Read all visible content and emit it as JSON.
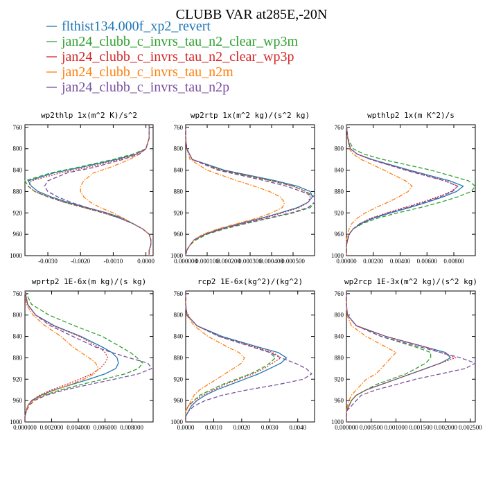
{
  "figure_title": "CLUBB VAR at285E,-20N",
  "legend": [
    {
      "label": "flthist134.000f_xp2_revert",
      "color": "#1f77b4",
      "dash": "solid"
    },
    {
      "label": "jan24_clubb_c_invrs_tau_n2_clear_wp3m",
      "color": "#2ca02c",
      "dash": "dash"
    },
    {
      "label": "jan24_clubb_c_invrs_tau_n2_clear_wp3p",
      "color": "#d62728",
      "dash": "dot"
    },
    {
      "label": "jan24_clubb_c_invrs_tau_n2m",
      "color": "#ff7f0e",
      "dash": "dashdot"
    },
    {
      "label": "jan24_clubb_c_invrs_tau_n2p",
      "color": "#7a4fa0",
      "dash": "dash"
    }
  ],
  "chart_data": [
    {
      "type": "line",
      "title": "wp2thlp  1x(m^2 K)/s^2",
      "xlim": [
        -0.0037,
        0.00022
      ],
      "ylim": [
        1000,
        755
      ],
      "xticks": [
        -0.003,
        -0.002,
        -0.001,
        0.0
      ],
      "xticklabels": [
        "-0.0030",
        "-0.0020",
        "-0.0010",
        "0.0000"
      ],
      "yticks": [
        760,
        800,
        840,
        880,
        920,
        960,
        1000
      ],
      "y": [
        755,
        780,
        800,
        810,
        820,
        835,
        845,
        860,
        870,
        880,
        890,
        900,
        910,
        920,
        930,
        940,
        950,
        960,
        970,
        980,
        990,
        1000
      ],
      "series": [
        {
          "values": [
            0.0001,
            0.0001,
            0.0,
            -0.0003,
            -0.0009,
            -0.002,
            -0.0028,
            -0.0036,
            -0.0035,
            -0.0033,
            -0.0029,
            -0.0024,
            -0.0018,
            -0.0012,
            -0.0007,
            -0.0004,
            -0.0001,
            0.0001,
            0.00015,
            0.00015,
            0.0001,
            0.0001
          ]
        },
        {
          "values": [
            0.0001,
            0.0001,
            0.0,
            -0.0004,
            -0.001,
            -0.0021,
            -0.0029,
            -0.0037,
            -0.0036,
            -0.0034,
            -0.003,
            -0.0025,
            -0.0019,
            -0.0013,
            -0.0008,
            -0.0004,
            -0.0001,
            0.0001,
            0.00015,
            0.00015,
            0.0001,
            0.0001
          ]
        },
        {
          "values": [
            0.0001,
            0.0001,
            0.0,
            -0.0003,
            -0.0008,
            -0.0018,
            -0.0026,
            -0.0035,
            -0.0036,
            -0.0034,
            -0.003,
            -0.0025,
            -0.0019,
            -0.0013,
            -0.0008,
            -0.0004,
            -0.0001,
            0.0001,
            0.00015,
            0.00015,
            0.0001,
            0.0001
          ]
        },
        {
          "values": [
            0.0001,
            0.0001,
            0.0,
            -0.0002,
            -0.0005,
            -0.0011,
            -0.0016,
            -0.0019,
            -0.002,
            -0.002,
            -0.0019,
            -0.0017,
            -0.0014,
            -0.001,
            -0.0007,
            -0.0004,
            -0.0001,
            0.0001,
            0.00015,
            0.00015,
            0.0001,
            0.0001
          ]
        },
        {
          "values": [
            0.0001,
            0.0001,
            0.0,
            -0.0002,
            -0.0007,
            -0.0016,
            -0.0024,
            -0.003,
            -0.0031,
            -0.003,
            -0.0027,
            -0.0023,
            -0.0018,
            -0.0012,
            -0.0008,
            -0.0004,
            -0.0001,
            0.0001,
            0.00015,
            0.00015,
            0.0001,
            0.0001
          ]
        }
      ]
    },
    {
      "type": "line",
      "title": "wp2rtp  1x(m^2 kg)/(s^2 kg)",
      "xlim": [
        0.0,
        0.0006
      ],
      "ylim": [
        1000,
        755
      ],
      "xticks": [
        0.0,
        0.0001,
        0.0002,
        0.0003,
        0.0004,
        0.0005
      ],
      "xticklabels": [
        "0.000000",
        "0.000100",
        "0.000200",
        "0.000300",
        "0.000400",
        "0.000500"
      ],
      "yticks": [
        760,
        800,
        840,
        880,
        920,
        960,
        1000
      ],
      "y": [
        755,
        780,
        800,
        820,
        840,
        860,
        870,
        880,
        890,
        900,
        910,
        920,
        930,
        940,
        950,
        960,
        970,
        980,
        990,
        1000
      ],
      "series": [
        {
          "values": [
            0.0,
            0.0,
            5e-06,
            3e-05,
            0.00018,
            0.00042,
            0.00052,
            0.00058,
            0.00059,
            0.00057,
            0.00052,
            0.00044,
            0.00035,
            0.00025,
            0.00016,
            9e-05,
            4e-05,
            2e-05,
            5e-06,
            0.0
          ]
        },
        {
          "values": [
            0.0,
            0.0,
            5e-06,
            3e-05,
            0.00016,
            0.0004,
            0.0005,
            0.00056,
            0.0006,
            0.00061,
            0.00058,
            0.0005,
            0.00039,
            0.00028,
            0.00018,
            0.0001,
            5e-05,
            2e-05,
            5e-06,
            0.0
          ]
        },
        {
          "values": [
            0.0,
            0.0,
            5e-06,
            3e-05,
            0.00017,
            0.0004,
            0.0005,
            0.00056,
            0.00058,
            0.00057,
            0.00053,
            0.00045,
            0.00036,
            0.00026,
            0.00017,
            9e-05,
            4e-05,
            2e-05,
            5e-06,
            0.0
          ]
        },
        {
          "values": [
            0.0,
            0.0,
            5e-06,
            2e-05,
            0.0001,
            0.00024,
            0.00032,
            0.00039,
            0.00044,
            0.00046,
            0.00045,
            0.0004,
            0.00033,
            0.00024,
            0.00015,
            8e-05,
            4e-05,
            2e-05,
            5e-06,
            0.0
          ]
        },
        {
          "values": [
            0.0,
            0.0,
            5e-06,
            3e-05,
            0.00015,
            0.00037,
            0.00047,
            0.00054,
            0.0006,
            0.00061,
            0.00057,
            0.00049,
            0.00038,
            0.00027,
            0.00017,
            9e-05,
            4e-05,
            2e-05,
            5e-06,
            0.0
          ]
        }
      ]
    },
    {
      "type": "line",
      "title": "wpthlp2  1x(m K^2)/s",
      "xlim": [
        0.0,
        0.0096
      ],
      "ylim": [
        1000,
        755
      ],
      "xticks": [
        0.0,
        0.002,
        0.004,
        0.006,
        0.008
      ],
      "xticklabels": [
        "0.00000",
        "0.00200",
        "0.00400",
        "0.00600",
        "0.00800"
      ],
      "yticks": [
        760,
        800,
        840,
        880,
        920,
        960,
        1000
      ],
      "y": [
        755,
        780,
        800,
        810,
        820,
        840,
        860,
        870,
        880,
        890,
        900,
        910,
        920,
        930,
        940,
        950,
        960,
        970,
        980,
        990,
        1000
      ],
      "series": [
        {
          "values": [
            0.0,
            0.0001,
            0.0003,
            0.0008,
            0.0019,
            0.0047,
            0.0077,
            0.0087,
            0.0082,
            0.0072,
            0.006,
            0.0047,
            0.0033,
            0.002,
            0.0011,
            0.0005,
            0.0002,
            0.0001,
            0.0,
            0.0,
            0.0
          ]
        },
        {
          "values": [
            0.0,
            0.0001,
            0.0005,
            0.0013,
            0.0027,
            0.0063,
            0.0091,
            0.0098,
            0.0093,
            0.0083,
            0.007,
            0.0055,
            0.0038,
            0.0023,
            0.0012,
            0.0005,
            0.0002,
            0.0001,
            0.0,
            0.0,
            0.0
          ]
        },
        {
          "values": [
            0.0,
            0.0001,
            0.0003,
            0.0008,
            0.0018,
            0.0045,
            0.0074,
            0.0083,
            0.0078,
            0.0068,
            0.0056,
            0.0043,
            0.003,
            0.0018,
            0.001,
            0.0005,
            0.0002,
            0.0001,
            0.0,
            0.0,
            0.0
          ]
        },
        {
          "values": [
            0.0,
            0.0001,
            0.0002,
            0.0005,
            0.0011,
            0.0028,
            0.0044,
            0.0049,
            0.0046,
            0.0039,
            0.0031,
            0.0022,
            0.0014,
            0.0008,
            0.0004,
            0.0002,
            0.0001,
            0.0,
            0.0,
            0.0,
            0.0
          ]
        },
        {
          "values": [
            0.0,
            0.0001,
            0.0003,
            0.0008,
            0.0018,
            0.0044,
            0.0073,
            0.0083,
            0.0079,
            0.007,
            0.0058,
            0.0045,
            0.0031,
            0.0019,
            0.001,
            0.0005,
            0.0002,
            0.0001,
            0.0,
            0.0,
            0.0
          ]
        }
      ]
    },
    {
      "type": "line",
      "title": "wprtp2  1E-6x(m kg)/(s kg)",
      "xlim": [
        0.0,
        0.0096
      ],
      "ylim": [
        1000,
        755
      ],
      "xticks": [
        0.0,
        0.002,
        0.004,
        0.006,
        0.008
      ],
      "xticklabels": [
        "0.000000",
        "0.002000",
        "0.004000",
        "0.006000",
        "0.008000"
      ],
      "yticks": [
        760,
        800,
        840,
        880,
        920,
        960,
        1000
      ],
      "y": [
        755,
        780,
        800,
        820,
        840,
        860,
        870,
        880,
        890,
        900,
        910,
        920,
        930,
        940,
        950,
        960,
        970,
        980,
        990,
        1000
      ],
      "series": [
        {
          "values": [
            0.0,
            0.0002,
            0.0008,
            0.0022,
            0.0042,
            0.0058,
            0.0065,
            0.0069,
            0.007,
            0.0068,
            0.006,
            0.0048,
            0.0035,
            0.0022,
            0.0012,
            0.0005,
            0.0002,
            0.0001,
            0.0,
            0.0
          ]
        },
        {
          "values": [
            0.0,
            0.0005,
            0.0018,
            0.0037,
            0.0058,
            0.0072,
            0.0079,
            0.0084,
            0.0088,
            0.0085,
            0.0075,
            0.0059,
            0.0042,
            0.0027,
            0.0014,
            0.0006,
            0.0002,
            0.0001,
            0.0,
            0.0
          ]
        },
        {
          "values": [
            0.0,
            0.0002,
            0.0008,
            0.0021,
            0.0041,
            0.0055,
            0.006,
            0.0062,
            0.006,
            0.0056,
            0.005,
            0.0041,
            0.0031,
            0.002,
            0.0011,
            0.0005,
            0.0002,
            0.0001,
            0.0,
            0.0
          ]
        },
        {
          "values": [
            0.0,
            0.0001,
            0.0006,
            0.0015,
            0.0027,
            0.0036,
            0.0042,
            0.0048,
            0.0053,
            0.0055,
            0.0052,
            0.0044,
            0.0034,
            0.0023,
            0.0013,
            0.0006,
            0.0002,
            0.0001,
            0.0,
            0.0
          ]
        },
        {
          "values": [
            0.0,
            0.0002,
            0.0008,
            0.0019,
            0.0036,
            0.0053,
            0.0065,
            0.0078,
            0.0092,
            0.0095,
            0.0085,
            0.0067,
            0.0048,
            0.003,
            0.0016,
            0.0007,
            0.0003,
            0.0001,
            0.0,
            0.0
          ]
        }
      ]
    },
    {
      "type": "line",
      "title": "rcp2  1E-6x(kg^2)/(kg^2)",
      "xlim": [
        0.0,
        0.0046
      ],
      "ylim": [
        1000,
        755
      ],
      "xticks": [
        0.0,
        0.001,
        0.002,
        0.003,
        0.004
      ],
      "xticklabels": [
        "0.0000",
        "0.0010",
        "0.0020",
        "0.0030",
        "0.0040"
      ],
      "yticks": [
        760,
        800,
        840,
        880,
        920,
        960,
        1000
      ],
      "y": [
        755,
        780,
        800,
        820,
        840,
        860,
        870,
        880,
        890,
        900,
        910,
        920,
        930,
        940,
        950,
        960,
        970,
        980,
        990,
        1000
      ],
      "series": [
        {
          "values": [
            0.0,
            0.0,
            5e-05,
            0.0004,
            0.0013,
            0.0026,
            0.0033,
            0.0036,
            0.0034,
            0.003,
            0.0026,
            0.0021,
            0.0016,
            0.0011,
            0.0007,
            0.0004,
            0.0002,
            0.0001,
            0.0,
            0.0
          ]
        },
        {
          "values": [
            0.0,
            0.0,
            5e-05,
            0.0004,
            0.0012,
            0.0024,
            0.003,
            0.0032,
            0.003,
            0.0027,
            0.0023,
            0.0018,
            0.0013,
            0.0009,
            0.0005,
            0.0003,
            0.0001,
            0.0,
            0.0,
            0.0
          ]
        },
        {
          "values": [
            0.0,
            0.0,
            5e-05,
            0.0004,
            0.0012,
            0.0025,
            0.0031,
            0.0034,
            0.0031,
            0.0028,
            0.0024,
            0.0019,
            0.0014,
            0.001,
            0.0006,
            0.0003,
            0.0001,
            0.0,
            0.0,
            0.0
          ]
        },
        {
          "values": [
            0.0,
            0.0,
            3e-05,
            0.0003,
            0.0008,
            0.0015,
            0.0019,
            0.0021,
            0.002,
            0.0017,
            0.0014,
            0.0011,
            0.0008,
            0.0005,
            0.0003,
            0.0002,
            0.0001,
            0.0,
            0.0,
            0.0
          ]
        },
        {
          "values": [
            0.0,
            0.0,
            5e-05,
            0.0004,
            0.0012,
            0.0024,
            0.003,
            0.0034,
            0.0039,
            0.0043,
            0.0045,
            0.0042,
            0.0033,
            0.0022,
            0.0013,
            0.0007,
            0.0003,
            0.0001,
            0.0,
            0.0
          ]
        }
      ]
    },
    {
      "type": "line",
      "title": "wp2rcp  1E-3x(m^2 kg)/(s^2 kg)",
      "xlim": [
        0.0,
        0.0026
      ],
      "ylim": [
        1000,
        755
      ],
      "xticks": [
        0.0,
        0.0005,
        0.001,
        0.0015,
        0.002,
        0.0025
      ],
      "xticklabels": [
        "0.000000",
        "0.000500",
        "0.001000",
        "0.001500",
        "0.002000",
        "0.002500"
      ],
      "yticks": [
        760,
        800,
        840,
        880,
        920,
        960,
        1000
      ],
      "y": [
        755,
        780,
        800,
        820,
        840,
        860,
        870,
        880,
        890,
        900,
        910,
        920,
        930,
        940,
        950,
        960,
        970,
        980,
        990,
        1000
      ],
      "series": [
        {
          "values": [
            0.0,
            0.0,
            2e-05,
            0.0002,
            0.0008,
            0.0016,
            0.002,
            0.0021,
            0.0019,
            0.0016,
            0.0013,
            0.001,
            0.0007,
            0.0004,
            0.0002,
            0.0001,
            5e-05,
            0.0,
            0.0,
            0.0
          ]
        },
        {
          "values": [
            0.0,
            0.0,
            2e-05,
            0.0002,
            0.0007,
            0.0014,
            0.0017,
            0.0017,
            0.0016,
            0.0014,
            0.0012,
            0.0009,
            0.0006,
            0.0004,
            0.0002,
            0.0001,
            5e-05,
            0.0,
            0.0,
            0.0
          ]
        },
        {
          "values": [
            0.0,
            0.0,
            2e-05,
            0.0002,
            0.0008,
            0.0016,
            0.0019,
            0.0022,
            0.0019,
            0.0016,
            0.0013,
            0.001,
            0.0007,
            0.0004,
            0.0002,
            0.0001,
            5e-05,
            0.0,
            0.0,
            0.0
          ]
        },
        {
          "values": [
            0.0,
            0.0,
            1e-05,
            0.0001,
            0.0004,
            0.0008,
            0.001,
            0.0009,
            0.0008,
            0.0007,
            0.0006,
            0.0004,
            0.0003,
            0.0002,
            0.0001,
            5e-05,
            2e-05,
            0.0,
            0.0,
            0.0
          ]
        },
        {
          "values": [
            0.0,
            0.0,
            2e-05,
            0.0002,
            0.0007,
            0.0015,
            0.0019,
            0.0023,
            0.0026,
            0.0024,
            0.0019,
            0.0014,
            0.001,
            0.0006,
            0.0003,
            0.0002,
            0.0001,
            0.0,
            0.0,
            0.0
          ]
        }
      ]
    }
  ]
}
